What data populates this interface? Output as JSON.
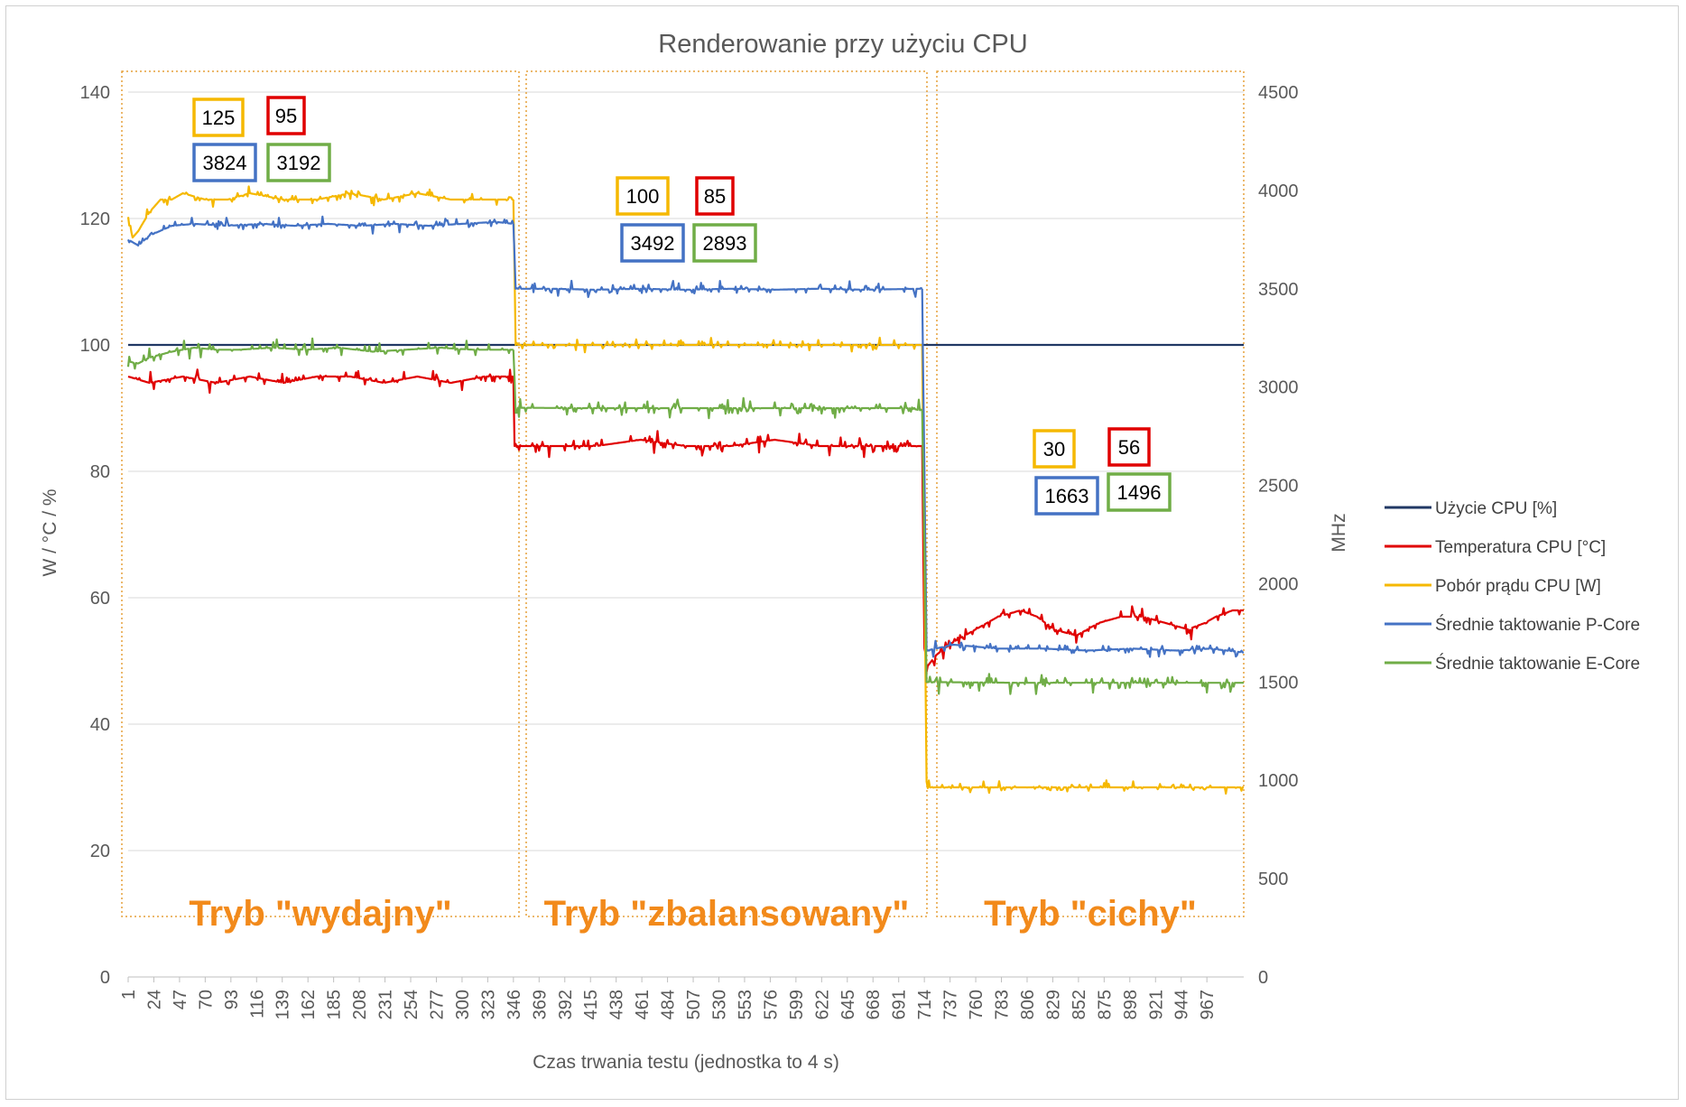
{
  "chart_data": {
    "type": "line",
    "title": "Renderowanie przy użyciu CPU",
    "xlabel": "Czas trwania testu (jednostka to 4 s)",
    "ylabel_left": "W / °C / %",
    "ylabel_right": "MHz",
    "ylim_left": [
      0,
      140
    ],
    "ylim_right": [
      0,
      4500
    ],
    "yticks_left": [
      "0",
      "20",
      "40",
      "60",
      "80",
      "100",
      "120",
      "140"
    ],
    "yticks_right": [
      "0",
      "500",
      "1000",
      "1500",
      "2000",
      "2500",
      "3000",
      "3500",
      "4000",
      "4500"
    ],
    "x_range": [
      1,
      1000
    ],
    "xticks": [
      "1",
      "24",
      "47",
      "70",
      "93",
      "116",
      "139",
      "162",
      "185",
      "208",
      "231",
      "254",
      "277",
      "300",
      "323",
      "346",
      "369",
      "392",
      "415",
      "438",
      "461",
      "484",
      "507",
      "530",
      "553",
      "576",
      "599",
      "622",
      "645",
      "668",
      "691",
      "714",
      "737",
      "760",
      "783",
      "806",
      "829",
      "852",
      "875",
      "898",
      "921",
      "944",
      "967"
    ],
    "grid": "horizontal",
    "legend_position": "right",
    "series": [
      {
        "name": "Użycie CPU [%]",
        "axis": "left",
        "color": "#203864",
        "segments": [
          {
            "x": [
              1,
              1000
            ],
            "y": [
              100,
              100
            ]
          }
        ]
      },
      {
        "name": "Temperatura CPU [°C]",
        "axis": "left",
        "color": "#e00000",
        "segments": [
          {
            "x": [
              1,
              20,
              50,
              80,
              110,
              140,
              170,
              200,
              230,
              260,
              290,
              320,
              346
            ],
            "y": [
              95,
              94,
              95,
              94,
              95,
              94,
              95,
              95,
              94,
              95,
              94,
              95,
              95
            ]
          },
          {
            "x": [
              346,
              347,
              380,
              420,
              460,
              500,
              540,
              580,
              620,
              660,
              712
            ],
            "y": [
              95,
              84,
              84,
              84,
              85,
              84,
              84,
              85,
              84,
              84,
              84
            ]
          },
          {
            "x": [
              712,
              714,
              716,
              725,
              740,
              760,
              780,
              800,
              815,
              830,
              850,
              870,
              890,
              910,
              930,
              950,
              965,
              975,
              990,
              1000
            ],
            "y": [
              84,
              52,
              49,
              51,
              53,
              55,
              57,
              58,
              57,
              55,
              54,
              56,
              57,
              57,
              56,
              55,
              56,
              57,
              58,
              58
            ]
          }
        ]
      },
      {
        "name": "Pobór prądu CPU [W]",
        "axis": "left",
        "color": "#f5b800",
        "segments": [
          {
            "x": [
              1,
              5,
              10,
              20,
              30,
              40,
              50,
              70,
              90,
              110,
              140,
              170,
              200,
              230,
              260,
              290,
              320,
              346
            ],
            "y": [
              120,
              117,
              118,
              121,
              123,
              123,
              124,
              123,
              123,
              124,
              123,
              123,
              124,
              123,
              124,
              123,
              123,
              123
            ]
          },
          {
            "x": [
              346,
              348,
              360,
              400,
              500,
              600,
              700,
              712
            ],
            "y": [
              123,
              100,
              100,
              100,
              100,
              100,
              100,
              100
            ]
          },
          {
            "x": [
              712,
              716,
              800,
              900,
              1000
            ],
            "y": [
              100,
              30,
              30,
              30,
              30
            ]
          }
        ]
      },
      {
        "name": "Średnie taktowanie P-Core",
        "axis": "right",
        "color": "#4472c4",
        "segments": [
          {
            "x": [
              1,
              10,
              20,
              40,
              60,
              90,
              120,
              150,
              180,
              210,
              240,
              270,
              300,
              330,
              346
            ],
            "y": [
              3750,
              3720,
              3770,
              3820,
              3830,
              3820,
              3830,
              3820,
              3830,
              3820,
              3830,
              3820,
              3830,
              3840,
              3830
            ]
          },
          {
            "x": [
              346,
              348,
              380,
              420,
              460,
              500,
              540,
              580,
              620,
              660,
              712
            ],
            "y": [
              3830,
              3500,
              3500,
              3495,
              3500,
              3495,
              3500,
              3495,
              3500,
              3495,
              3500
            ]
          },
          {
            "x": [
              712,
              716,
              740,
              780,
              820,
              860,
              900,
              940,
              970,
              1000
            ],
            "y": [
              3500,
              1660,
              1690,
              1670,
              1670,
              1660,
              1670,
              1660,
              1670,
              1650
            ]
          }
        ]
      },
      {
        "name": "Średnie taktowanie E-Core",
        "axis": "right",
        "color": "#70ad47",
        "segments": [
          {
            "x": [
              1,
              10,
              20,
              40,
              60,
              80,
              100,
              130,
              160,
              190,
              220,
              250,
              280,
              310,
              346
            ],
            "y": [
              3130,
              3120,
              3150,
              3180,
              3200,
              3190,
              3190,
              3200,
              3190,
              3200,
              3180,
              3190,
              3200,
              3190,
              3190
            ]
          },
          {
            "x": [
              346,
              348,
              400,
              500,
              600,
              700,
              712
            ],
            "y": [
              3190,
              2895,
              2893,
              2893,
              2893,
              2893,
              2880
            ]
          },
          {
            "x": [
              712,
              716,
              800,
              900,
              1000
            ],
            "y": [
              2880,
              1500,
              1496,
              1496,
              1496
            ]
          }
        ]
      }
    ],
    "regions": [
      {
        "label": "Tryb \"wydajny\"",
        "x_range": [
          1,
          346
        ],
        "boxes": [
          {
            "value": "125",
            "color": "#f5b800"
          },
          {
            "value": "95",
            "color": "#e00000"
          },
          {
            "value": "3824",
            "color": "#4472c4"
          },
          {
            "value": "3192",
            "color": "#70ad47"
          }
        ]
      },
      {
        "label": "Tryb \"zbalansowany\"",
        "x_range": [
          346,
          712
        ],
        "boxes": [
          {
            "value": "100",
            "color": "#f5b800"
          },
          {
            "value": "85",
            "color": "#e00000"
          },
          {
            "value": "3492",
            "color": "#4472c4"
          },
          {
            "value": "2893",
            "color": "#70ad47"
          }
        ]
      },
      {
        "label": "Tryb \"cichy\"",
        "x_range": [
          712,
          1000
        ],
        "boxes": [
          {
            "value": "30",
            "color": "#f5b800"
          },
          {
            "value": "56",
            "color": "#e00000"
          },
          {
            "value": "1663",
            "color": "#4472c4"
          },
          {
            "value": "1496",
            "color": "#70ad47"
          }
        ]
      }
    ]
  }
}
